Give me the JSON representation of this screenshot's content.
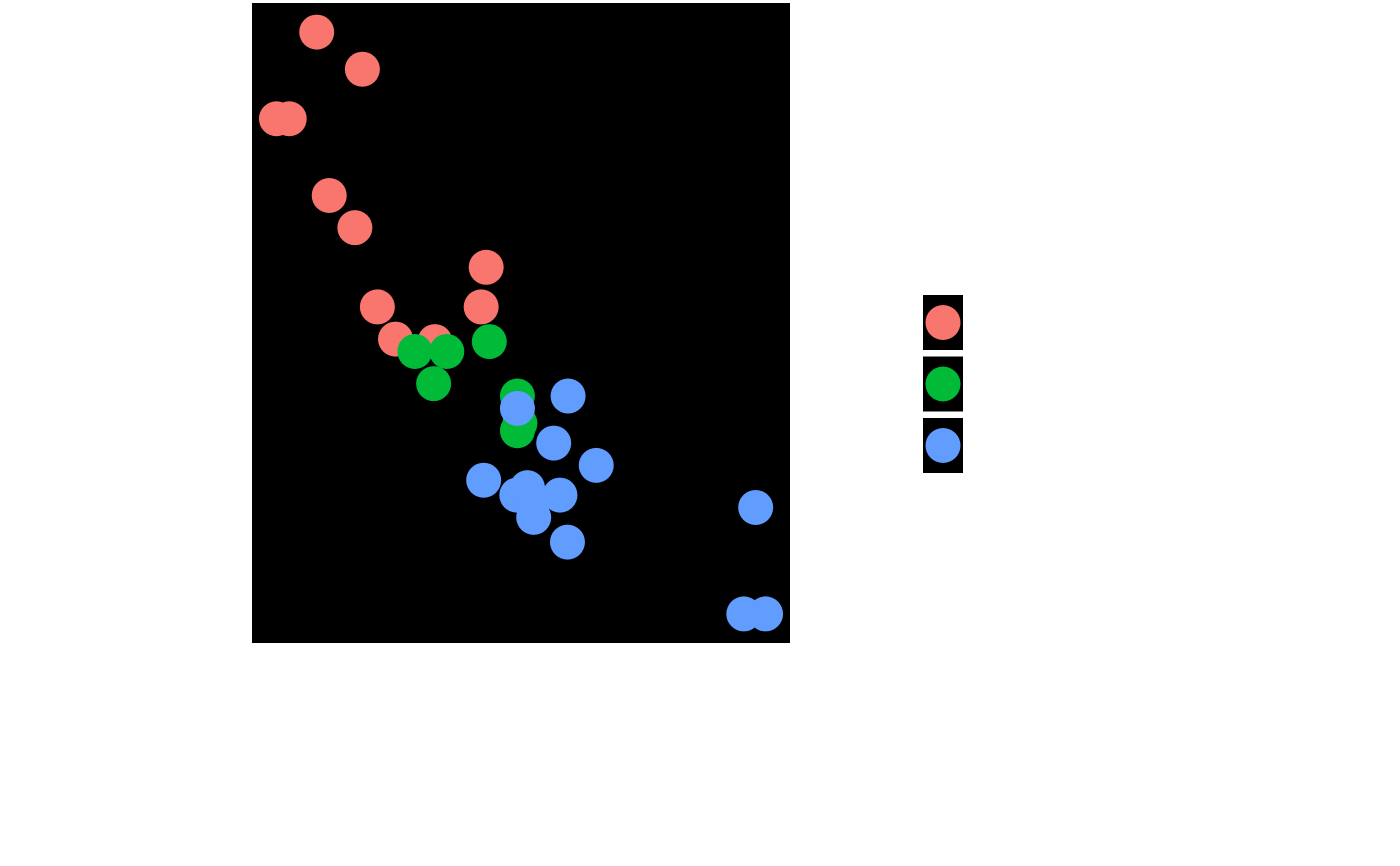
{
  "chart_data": {
    "type": "scatter",
    "xlim": [
      1.3175,
      5.6195
    ],
    "ylim": [
      9.225,
      35.075
    ],
    "background": "#000000",
    "series": [
      {
        "color": "#F8766D",
        "x": [
          2.32,
          3.19,
          3.15,
          2.2,
          1.615,
          1.835,
          2.465,
          1.935,
          2.14,
          1.513,
          2.78
        ],
        "values": [
          22.8,
          24.4,
          22.8,
          32.4,
          30.4,
          33.9,
          21.5,
          27.3,
          26.0,
          30.4,
          21.4
        ]
      },
      {
        "color": "#00BA38",
        "x": [
          2.62,
          2.875,
          3.215,
          3.46,
          3.44,
          3.44,
          2.77
        ],
        "values": [
          21.0,
          21.0,
          21.4,
          18.1,
          19.2,
          17.8,
          19.7
        ]
      },
      {
        "color": "#619CFF",
        "x": [
          3.44,
          3.57,
          4.07,
          3.73,
          3.78,
          5.25,
          5.424,
          5.345,
          3.52,
          3.435,
          3.84,
          3.845,
          3.17,
          3.57
        ],
        "values": [
          18.7,
          14.3,
          16.4,
          17.3,
          15.2,
          10.4,
          10.4,
          14.7,
          15.5,
          15.2,
          13.3,
          19.2,
          15.8,
          15.0
        ]
      }
    ]
  }
}
